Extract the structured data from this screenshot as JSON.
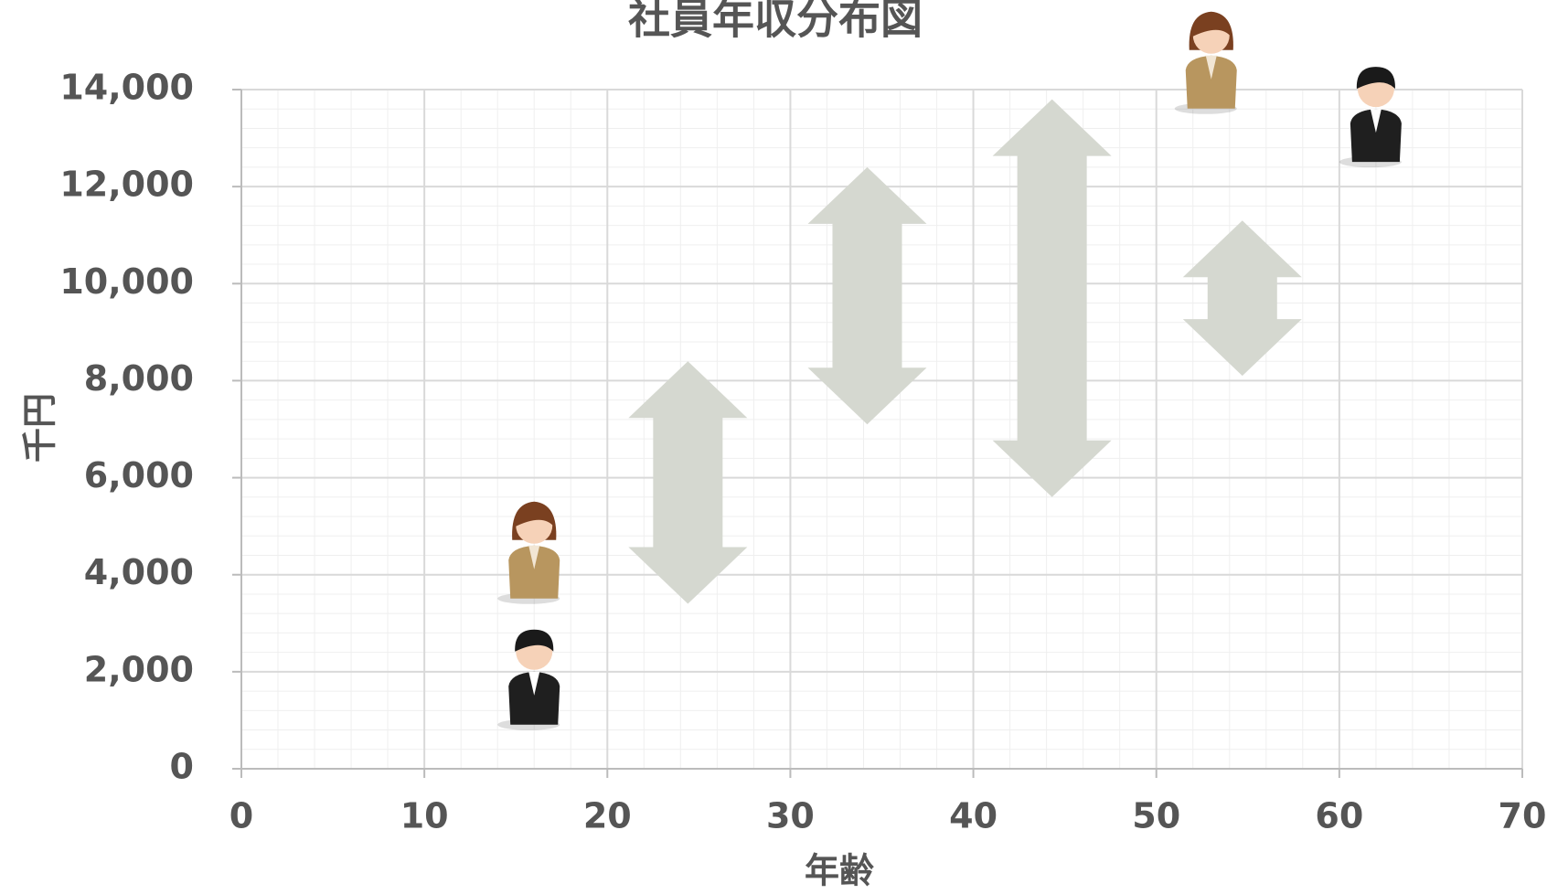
{
  "chart_data": {
    "type": "scatter",
    "title": "社員年収分布図",
    "xlabel": "年齢",
    "ylabel": "千円",
    "xlim": [
      0,
      70
    ],
    "xticks": [
      0,
      10,
      20,
      30,
      40,
      50,
      60,
      70
    ],
    "ylim": [
      0,
      14000
    ],
    "yticks": [
      0,
      {
        "value": 2000,
        "label": "2,000"
      },
      {
        "value": 4000,
        "label": "4,000"
      },
      {
        "value": 6000,
        "label": "6,000"
      },
      {
        "value": 8000,
        "label": "8,000"
      },
      {
        "value": 10000,
        "label": "10,000"
      },
      {
        "value": 12000,
        "label": "12,000"
      },
      {
        "value": 14000,
        "label": "14,000"
      }
    ],
    "grid": true,
    "series": [
      {
        "color": "#1f1f1f",
        "x": [
          16,
          62
        ],
        "values": [
          1700,
          13300
        ]
      },
      {
        "color": "#b8965f",
        "x": [
          16,
          53
        ],
        "values": [
          4300,
          14400
        ]
      }
    ],
    "ranges": {
      "color": "#d5d8d0",
      "x": [
        24.4,
        34.2,
        44.3,
        54.7
      ],
      "low": [
        3400,
        7100,
        5600,
        8100
      ],
      "high": [
        8400,
        12400,
        13800,
        11300
      ]
    }
  }
}
